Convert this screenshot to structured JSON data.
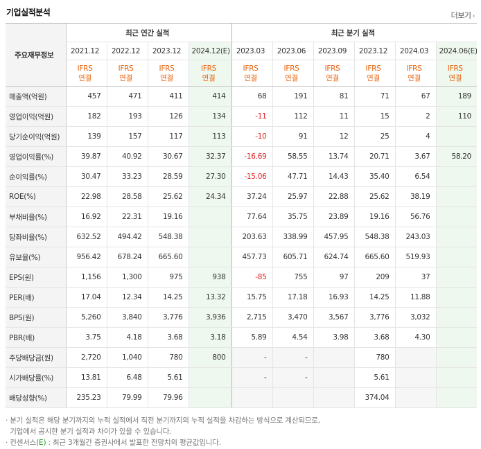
{
  "header": {
    "title": "기업실적분석",
    "more_label": "더보기"
  },
  "table": {
    "label_header": "주요재무정보",
    "annual_header": "최근 연간 실적",
    "quarter_header": "최근 분기 실적",
    "periods": [
      "2021.12",
      "2022.12",
      "2023.12",
      "2024.12(E)",
      "2023.03",
      "2023.06",
      "2023.09",
      "2023.12",
      "2024.03",
      "2024.06(E)"
    ],
    "ifrs_top": "IFRS",
    "ifrs_bottom": "연결",
    "rows": [
      {
        "label": "매출액(억원)",
        "values": [
          "457",
          "471",
          "411",
          "414",
          "68",
          "191",
          "81",
          "71",
          "67",
          "189"
        ]
      },
      {
        "label": "영업이익(억원)",
        "values": [
          "182",
          "193",
          "126",
          "134",
          "-11",
          "112",
          "11",
          "15",
          "2",
          "110"
        ]
      },
      {
        "label": "당기순이익(억원)",
        "values": [
          "139",
          "157",
          "117",
          "113",
          "-10",
          "91",
          "12",
          "25",
          "4",
          ""
        ]
      },
      {
        "label": "영업이익률(%)",
        "values": [
          "39.87",
          "40.92",
          "30.67",
          "32.37",
          "-16.69",
          "58.55",
          "13.74",
          "20.71",
          "3.67",
          "58.20"
        ]
      },
      {
        "label": "순이익률(%)",
        "values": [
          "30.47",
          "33.23",
          "28.59",
          "27.30",
          "-15.06",
          "47.71",
          "14.43",
          "35.40",
          "6.54",
          ""
        ]
      },
      {
        "label": "ROE(%)",
        "values": [
          "22.98",
          "28.58",
          "25.62",
          "24.34",
          "37.24",
          "25.97",
          "22.88",
          "25.62",
          "38.19",
          ""
        ]
      },
      {
        "label": "부채비율(%)",
        "values": [
          "16.92",
          "22.31",
          "19.16",
          "",
          "77.64",
          "35.75",
          "23.89",
          "19.16",
          "56.76",
          ""
        ]
      },
      {
        "label": "당좌비율(%)",
        "values": [
          "632.52",
          "494.42",
          "548.38",
          "",
          "203.63",
          "338.99",
          "457.95",
          "548.38",
          "243.03",
          ""
        ]
      },
      {
        "label": "유보율(%)",
        "values": [
          "956.42",
          "678.24",
          "665.60",
          "",
          "457.73",
          "605.71",
          "624.74",
          "665.60",
          "519.93",
          ""
        ]
      },
      {
        "label": "EPS(원)",
        "values": [
          "1,156",
          "1,300",
          "975",
          "938",
          "-85",
          "755",
          "97",
          "209",
          "37",
          ""
        ]
      },
      {
        "label": "PER(배)",
        "values": [
          "17.04",
          "12.34",
          "14.25",
          "13.32",
          "15.75",
          "17.18",
          "16.93",
          "14.25",
          "11.88",
          ""
        ]
      },
      {
        "label": "BPS(원)",
        "values": [
          "5,260",
          "3,840",
          "3,776",
          "3,936",
          "2,715",
          "3,470",
          "3,567",
          "3,776",
          "3,032",
          ""
        ]
      },
      {
        "label": "PBR(배)",
        "values": [
          "3.75",
          "4.18",
          "3.68",
          "3.18",
          "5.89",
          "4.54",
          "3.98",
          "3.68",
          "4.30",
          ""
        ]
      },
      {
        "label": "주당배당금(원)",
        "values": [
          "2,720",
          "1,040",
          "780",
          "800",
          "-",
          "-",
          "",
          "780",
          "",
          ""
        ]
      },
      {
        "label": "시가배당률(%)",
        "values": [
          "13.81",
          "6.48",
          "5.61",
          "",
          "-",
          "-",
          "",
          "5.61",
          "",
          ""
        ]
      },
      {
        "label": "배당성향(%)",
        "values": [
          "235.23",
          "79.99",
          "79.96",
          "",
          "",
          "",
          "",
          "374.04",
          "",
          ""
        ]
      }
    ]
  },
  "notes": {
    "line1": "· 분기 실적은 해당 분기까지의 누적 실적에서 직전 분기까지의 누적 실적을 차감하는 방식으로 계산되므로,",
    "line2": "  기업에서 공시한 분기 실적과 차이가 있을 수 있습니다.",
    "line3_prefix": "· 컨센서스",
    "line3_e": "(E)",
    "line3_suffix": " : 최근 3개월간 증권사에서 발표한 전망치의 평균값입니다."
  },
  "colors": {
    "accent": "#e8620a",
    "negative": "#e02020",
    "estimate_bg": "#eef8ee",
    "label_bg": "#f4f4f4"
  }
}
